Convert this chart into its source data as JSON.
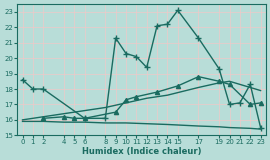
{
  "xlabel": "Humidex (Indice chaleur)",
  "xlim": [
    -0.5,
    23.5
  ],
  "ylim": [
    15,
    23.5
  ],
  "yticks": [
    15,
    16,
    17,
    18,
    19,
    20,
    21,
    22,
    23
  ],
  "xticks": [
    0,
    1,
    2,
    4,
    5,
    6,
    8,
    9,
    10,
    11,
    12,
    13,
    14,
    15,
    17,
    19,
    20,
    21,
    22,
    23
  ],
  "bg_color": "#b8ddd8",
  "grid_minor_color": "#f0c8c8",
  "grid_major_color": "#f0c8c8",
  "line_color": "#1a6b60",
  "lines": [
    {
      "x": [
        0,
        1,
        2,
        6,
        8,
        9,
        10,
        11,
        12,
        13,
        14,
        15,
        17,
        19,
        20,
        21,
        22,
        23
      ],
      "y": [
        18.6,
        18.0,
        18.0,
        16.1,
        16.1,
        21.3,
        20.3,
        20.1,
        19.4,
        22.1,
        22.2,
        23.1,
        21.3,
        19.3,
        17.0,
        17.1,
        18.3,
        15.5
      ],
      "marker": "+",
      "markersize": 4,
      "linewidth": 1.0
    },
    {
      "x": [
        2,
        4,
        5,
        6,
        9,
        10,
        11,
        13,
        15,
        17,
        19,
        20,
        22,
        23
      ],
      "y": [
        16.1,
        16.2,
        16.1,
        16.1,
        16.5,
        17.3,
        17.5,
        17.8,
        18.2,
        18.8,
        18.5,
        18.3,
        17.0,
        17.1
      ],
      "marker": "^",
      "markersize": 3,
      "linewidth": 1.0
    },
    {
      "x": [
        0,
        2,
        4,
        6,
        8,
        10,
        12,
        14,
        17,
        19,
        20,
        22,
        23
      ],
      "y": [
        16.0,
        16.2,
        16.4,
        16.6,
        16.8,
        17.1,
        17.4,
        17.6,
        18.1,
        18.4,
        18.5,
        18.1,
        17.9
      ],
      "marker": null,
      "markersize": 0,
      "linewidth": 1.0
    },
    {
      "x": [
        0,
        2,
        4,
        6,
        8,
        10,
        12,
        14,
        17,
        19,
        20,
        22,
        23
      ],
      "y": [
        15.9,
        15.9,
        15.85,
        15.85,
        15.8,
        15.8,
        15.75,
        15.7,
        15.6,
        15.55,
        15.5,
        15.45,
        15.4
      ],
      "marker": null,
      "markersize": 0,
      "linewidth": 1.0
    }
  ]
}
